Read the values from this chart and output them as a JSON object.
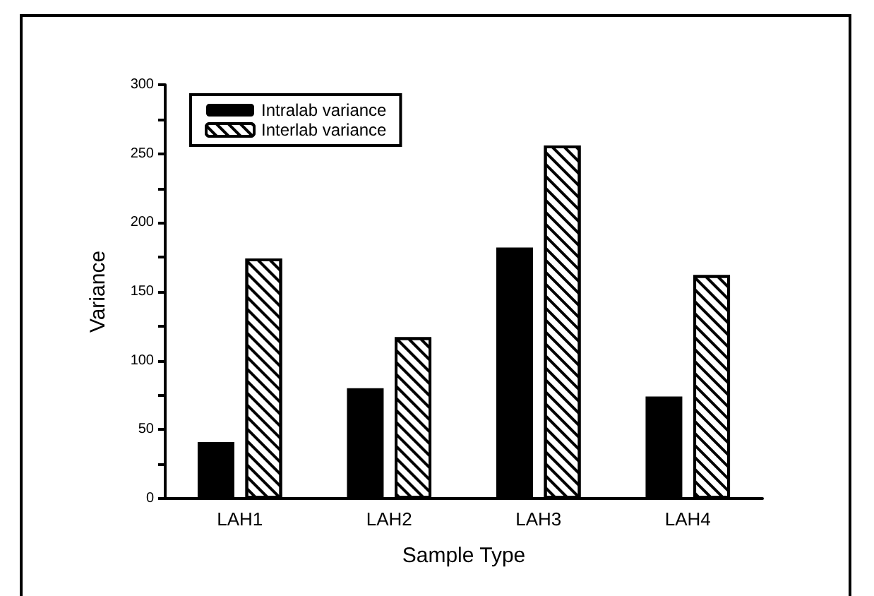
{
  "chart_data": {
    "type": "bar",
    "xlabel": "Sample Type",
    "ylabel": "Variance",
    "categories": [
      "LAH1",
      "LAH2",
      "LAH3",
      "LAH4"
    ],
    "series": [
      {
        "name": "Intralab variance",
        "color": "#000000",
        "values": [
          41,
          80,
          182,
          74
        ]
      },
      {
        "name": "Interlab variance",
        "color": "#ffffff",
        "values": [
          174,
          117,
          256,
          162
        ]
      }
    ],
    "ylim": [
      0,
      300
    ],
    "yticks": [
      0,
      {
        "value": 25,
        "label": null
      },
      50,
      {
        "value": 75,
        "label": null
      },
      100,
      {
        "value": 125,
        "label": null
      },
      150,
      {
        "value": 175,
        "label": null
      },
      200,
      {
        "value": 225,
        "label": null
      },
      250,
      {
        "value": 275,
        "label": null
      },
      300
    ],
    "grid": false,
    "legend": "top left"
  }
}
